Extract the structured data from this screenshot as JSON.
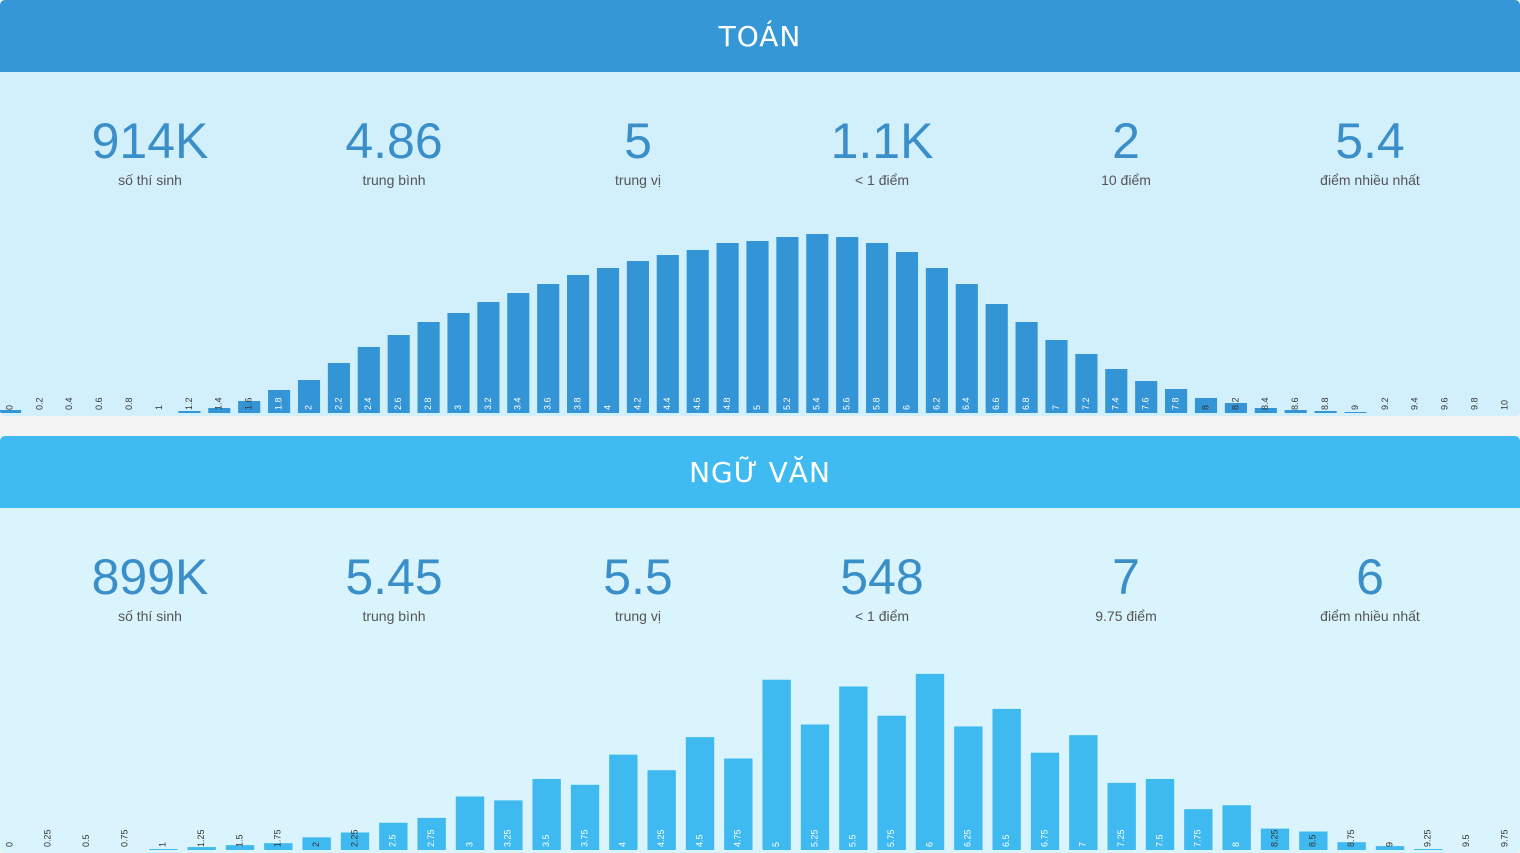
{
  "chart_data": [
    {
      "type": "bar",
      "title": "TOÁN",
      "color": "#3394d6",
      "header_color": "#3597d6",
      "background": "#d2effc",
      "stats": [
        {
          "value": "914K",
          "label": "số thí sinh"
        },
        {
          "value": "4.86",
          "label": "trung bình"
        },
        {
          "value": "5",
          "label": "trung vị"
        },
        {
          "value": "1.1K",
          "label": "< 1 điểm"
        },
        {
          "value": "2",
          "label": "10 điểm"
        },
        {
          "value": "5.4",
          "label": "điểm nhiều nhất"
        }
      ],
      "categories": [
        "0",
        "0.2",
        "0.4",
        "0.6",
        "0.8",
        "1",
        "1.2",
        "1.4",
        "1.6",
        "1.8",
        "2",
        "2.2",
        "2.4",
        "2.6",
        "2.8",
        "3",
        "3.2",
        "3.4",
        "3.6",
        "3.8",
        "4",
        "4.2",
        "4.4",
        "4.6",
        "4.8",
        "5",
        "5.2",
        "5.4",
        "5.6",
        "5.8",
        "6",
        "6.2",
        "6.4",
        "6.6",
        "6.8",
        "7",
        "7.2",
        "7.4",
        "7.6",
        "7.8",
        "8",
        "8.2",
        "8.4",
        "8.6",
        "8.8",
        "9",
        "9.2",
        "9.4",
        "9.6",
        "9.8",
        "10"
      ],
      "values": [
        3,
        0,
        0,
        0,
        0,
        0,
        2,
        5,
        12,
        23,
        33,
        50,
        66,
        78,
        91,
        100,
        111,
        120,
        129,
        138,
        145,
        152,
        158,
        163,
        170,
        172,
        176,
        179,
        176,
        170,
        161,
        145,
        129,
        109,
        91,
        73,
        59,
        44,
        32,
        24,
        15,
        10,
        5,
        3,
        2,
        1,
        0,
        0,
        0,
        0,
        0
      ],
      "ylim": [
        0,
        180
      ]
    },
    {
      "type": "bar",
      "title": "NGỮ VĂN",
      "color": "#3ebaf0",
      "header_color": "#40bbf1",
      "background": "#d9f4fd",
      "stats": [
        {
          "value": "899K",
          "label": "số thí sinh"
        },
        {
          "value": "5.45",
          "label": "trung bình"
        },
        {
          "value": "5.5",
          "label": "trung vị"
        },
        {
          "value": "548",
          "label": "< 1 điểm"
        },
        {
          "value": "7",
          "label": "9.75 điểm"
        },
        {
          "value": "6",
          "label": "điểm nhiều nhất"
        }
      ],
      "categories": [
        "0",
        "0.25",
        "0.5",
        "0.75",
        "1",
        "1.25",
        "1.5",
        "1.75",
        "2",
        "2.25",
        "2.5",
        "2.75",
        "3",
        "3.25",
        "3.5",
        "3.75",
        "4",
        "4.25",
        "4.5",
        "4.75",
        "5",
        "5.25",
        "5.5",
        "5.75",
        "6",
        "6.25",
        "6.5",
        "6.75",
        "7",
        "7.25",
        "7.5",
        "7.75",
        "8",
        "8.25",
        "8.5",
        "8.75",
        "9",
        "9.25",
        "9.5",
        "9.75"
      ],
      "values": [
        0,
        0,
        0,
        0,
        1,
        3,
        5,
        7,
        13,
        18,
        28,
        33,
        55,
        51,
        73,
        67,
        98,
        82,
        116,
        94,
        175,
        129,
        168,
        138,
        181,
        127,
        145,
        100,
        118,
        69,
        73,
        42,
        46,
        22,
        19,
        8,
        4,
        1,
        0,
        0
      ],
      "ylim": [
        0,
        185
      ]
    }
  ]
}
